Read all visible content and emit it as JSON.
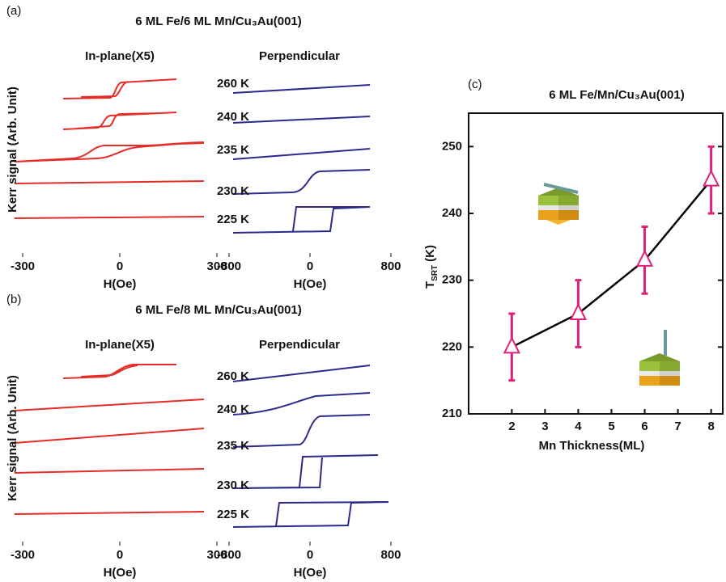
{
  "chart_data": [
    {
      "type": "hysteresis",
      "label": "(a)",
      "title": "6 ML Fe/6 ML Mn/Cu₃Au(001)",
      "ylabel": "Kerr signal (Arb. Unit)",
      "inplane": {
        "title": "In-plane(X5)",
        "xlabel": "H(Oe)",
        "xlim": [
          -300,
          300
        ],
        "xticks": [
          -300,
          0,
          300
        ]
      },
      "perpendicular": {
        "title": "Perpendicular",
        "xlabel": "H(Oe)",
        "xlim": [
          -800,
          800
        ],
        "xticks": [
          -800,
          0,
          800
        ],
        "temperatures": [
          "260 K",
          "240 K",
          "235 K",
          "230 K",
          "225 K"
        ]
      }
    },
    {
      "type": "hysteresis",
      "label": "(b)",
      "title": "6 ML Fe/8 ML Mn/Cu₃Au(001)",
      "ylabel": "Kerr signal (Arb. Unit)",
      "inplane": {
        "title": "In-plane(X5)",
        "xlabel": "H(Oe)",
        "xlim": [
          -300,
          300
        ],
        "xticks": [
          -300,
          0,
          300
        ]
      },
      "perpendicular": {
        "title": "Perpendicular",
        "xlabel": "H(Oe)",
        "xlim": [
          -800,
          800
        ],
        "xticks": [
          -800,
          0,
          800
        ],
        "temperatures": [
          "260 K",
          "240 K",
          "235 K",
          "230 K",
          "225 K"
        ]
      }
    },
    {
      "type": "line",
      "label": "(c)",
      "title": "6 ML Fe/Mn/Cu₃Au(001)",
      "xlabel": "Mn Thickness(ML)",
      "ylabel": {
        "main": "T",
        "sub": "SRT",
        "unit": "(K)"
      },
      "x": [
        2,
        4,
        6,
        8
      ],
      "values": [
        220,
        225,
        233,
        245
      ],
      "errors": [
        5,
        5,
        5,
        5
      ],
      "line_color": "#000000",
      "marker_color": "#e0207a",
      "xlim": [
        0.7,
        8.35
      ],
      "xticks": [
        2,
        3,
        4,
        5,
        6,
        7,
        8
      ],
      "ylim": [
        210,
        255
      ],
      "yticks": [
        210,
        220,
        230,
        240,
        250
      ]
    }
  ]
}
